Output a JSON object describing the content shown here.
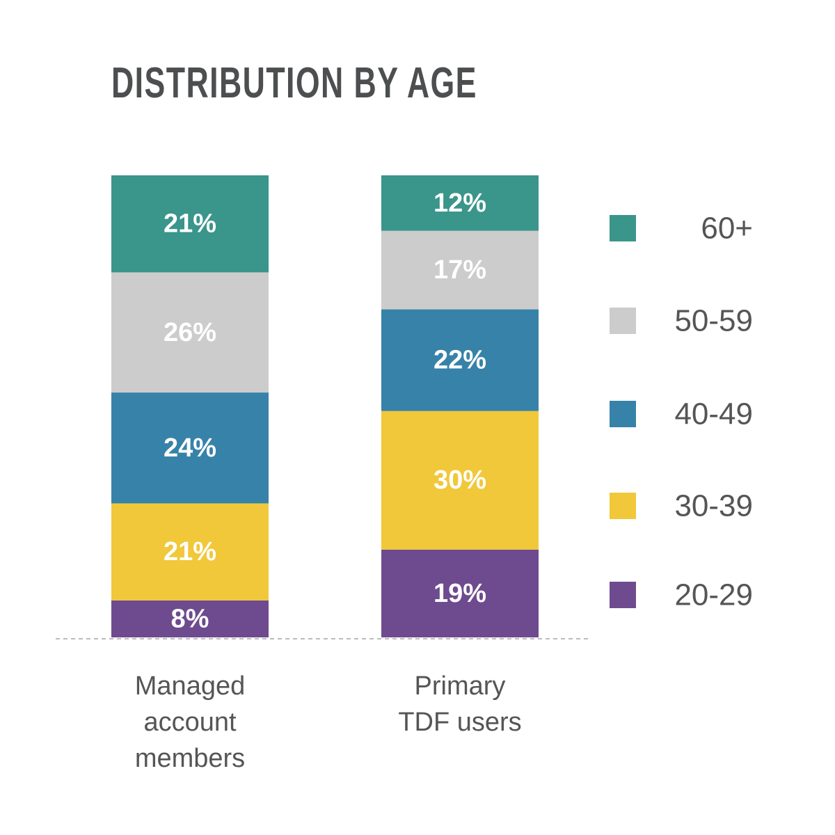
{
  "chart_data": {
    "type": "bar",
    "stacked": true,
    "title": "DISTRIBUTION BY AGE",
    "categories": [
      [
        "Managed",
        "account",
        "members"
      ],
      [
        "Primary",
        "TDF users"
      ]
    ],
    "series": [
      {
        "name": "20-29",
        "color": "#6e4a8f",
        "values": [
          8,
          19
        ],
        "labels": [
          "8%",
          "19%"
        ]
      },
      {
        "name": "30-39",
        "color": "#f0c83a",
        "values": [
          21,
          30
        ],
        "labels": [
          "21%",
          "30%"
        ]
      },
      {
        "name": "40-49",
        "color": "#3782a8",
        "values": [
          24,
          22
        ],
        "labels": [
          "24%",
          "22%"
        ]
      },
      {
        "name": "50-59",
        "color": "#cccccc",
        "values": [
          26,
          17
        ],
        "labels": [
          "26%",
          "17%"
        ]
      },
      {
        "name": "60+",
        "color": "#3a958b",
        "values": [
          21,
          12
        ],
        "labels": [
          "21%",
          "12%"
        ]
      }
    ],
    "legend_order": [
      "60+",
      "50-59",
      "40-49",
      "30-39",
      "20-29"
    ],
    "legend_position": "right",
    "ylim": [
      0,
      100
    ],
    "grid": false
  }
}
